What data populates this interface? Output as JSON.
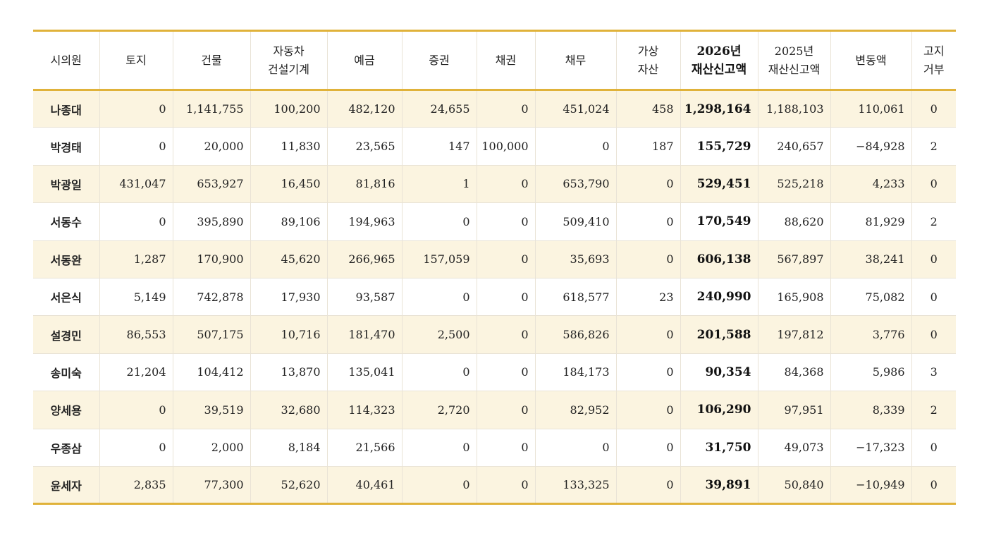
{
  "table": {
    "headers": [
      [
        "시의원"
      ],
      [
        "토지"
      ],
      [
        "건물"
      ],
      [
        "자동차",
        "건설기계"
      ],
      [
        "예금"
      ],
      [
        "증권"
      ],
      [
        "채권"
      ],
      [
        "채무"
      ],
      [
        "가상",
        "자산"
      ],
      [
        "2026년",
        "재산신고액"
      ],
      [
        "2025년",
        "재산신고액"
      ],
      [
        "변동액"
      ],
      [
        "고지",
        "거부"
      ]
    ],
    "rows": [
      [
        "나종대",
        "0",
        "1,141,755",
        "100,200",
        "482,120",
        "24,655",
        "0",
        "451,024",
        "458",
        "1,298,164",
        "1,188,103",
        "110,061",
        "0"
      ],
      [
        "박경태",
        "0",
        "20,000",
        "11,830",
        "23,565",
        "147",
        "100,000",
        "0",
        "187",
        "155,729",
        "240,657",
        "−84,928",
        "2"
      ],
      [
        "박광일",
        "431,047",
        "653,927",
        "16,450",
        "81,816",
        "1",
        "0",
        "653,790",
        "0",
        "529,451",
        "525,218",
        "4,233",
        "0"
      ],
      [
        "서동수",
        "0",
        "395,890",
        "89,106",
        "194,963",
        "0",
        "0",
        "509,410",
        "0",
        "170,549",
        "88,620",
        "81,929",
        "2"
      ],
      [
        "서동완",
        "1,287",
        "170,900",
        "45,620",
        "266,965",
        "157,059",
        "0",
        "35,693",
        "0",
        "606,138",
        "567,897",
        "38,241",
        "0"
      ],
      [
        "서은식",
        "5,149",
        "742,878",
        "17,930",
        "93,587",
        "0",
        "0",
        "618,577",
        "23",
        "240,990",
        "165,908",
        "75,082",
        "0"
      ],
      [
        "설경민",
        "86,553",
        "507,175",
        "10,716",
        "181,470",
        "2,500",
        "0",
        "586,826",
        "0",
        "201,588",
        "197,812",
        "3,776",
        "0"
      ],
      [
        "송미숙",
        "21,204",
        "104,412",
        "13,870",
        "135,041",
        "0",
        "0",
        "184,173",
        "0",
        "90,354",
        "84,368",
        "5,986",
        "3"
      ],
      [
        "양세용",
        "0",
        "39,519",
        "32,680",
        "114,323",
        "2,720",
        "0",
        "82,952",
        "0",
        "106,290",
        "97,951",
        "8,339",
        "2"
      ],
      [
        "우종삼",
        "0",
        "2,000",
        "8,184",
        "21,566",
        "0",
        "0",
        "0",
        "0",
        "31,750",
        "49,073",
        "−17,323",
        "0"
      ],
      [
        "윤세자",
        "2,835",
        "77,300",
        "52,620",
        "40,461",
        "0",
        "0",
        "133,325",
        "0",
        "39,891",
        "50,840",
        "−10,949",
        "0"
      ]
    ]
  },
  "colors": {
    "rule": "#e0b23a",
    "stripe": "#fbf4e0",
    "grid": "#e9e3d6"
  }
}
